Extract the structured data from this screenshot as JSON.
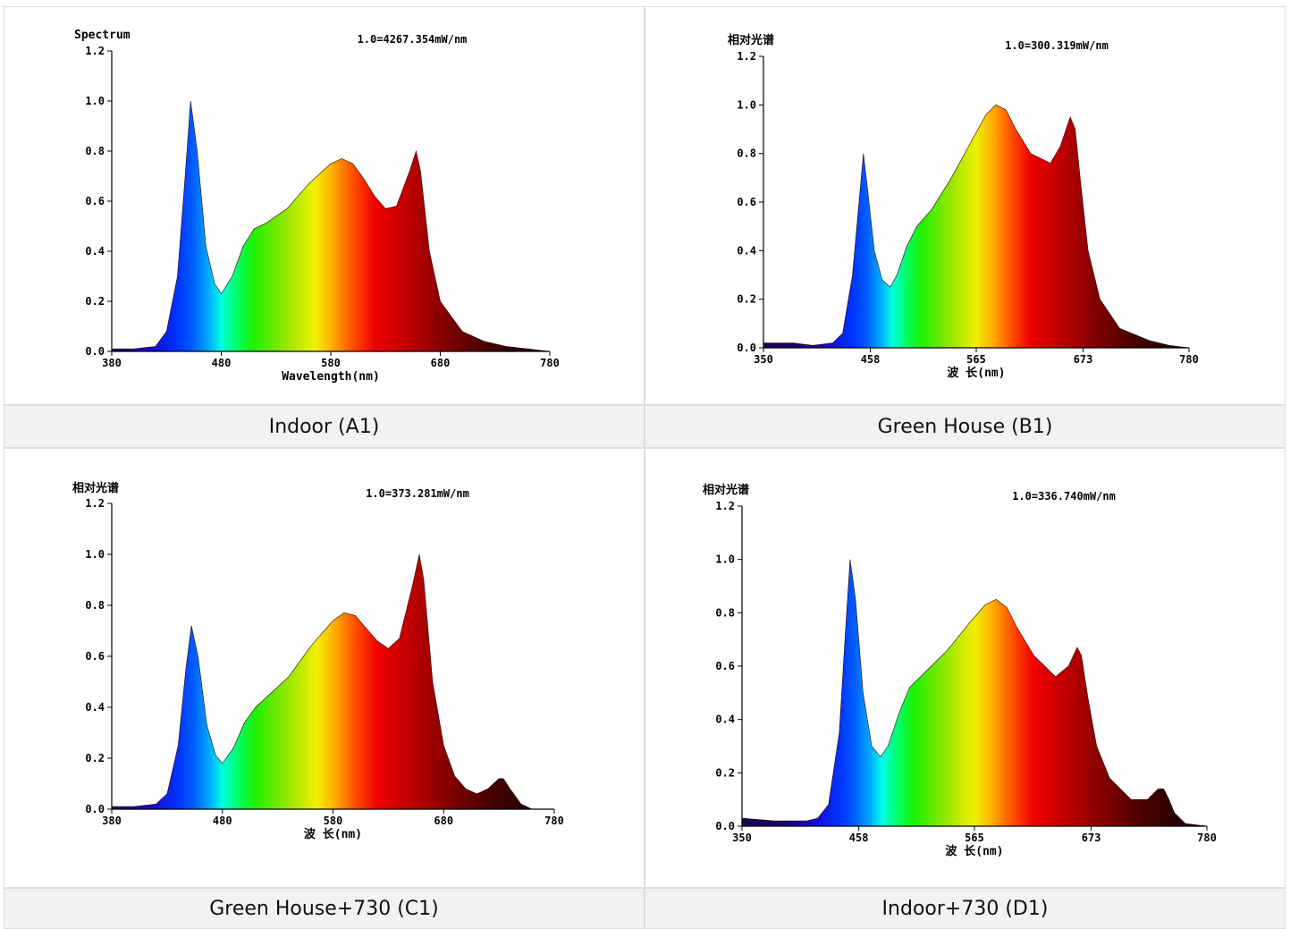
{
  "chart_data": [
    {
      "type": "area",
      "caption": "Indoor (A1)",
      "ylabel": "Spectrum",
      "xlabel": "Wavelength(nm)",
      "annotation": "1.0=4267.354mW/nm",
      "xlim": [
        380,
        780
      ],
      "ylim": [
        0,
        1.2
      ],
      "xticks": [
        380,
        480,
        580,
        680,
        780
      ],
      "yticks": [
        "0.0",
        "0.2",
        "0.4",
        "0.6",
        "0.8",
        "1.0",
        "1.2"
      ],
      "x": [
        380,
        400,
        420,
        430,
        440,
        447,
        452,
        458,
        466,
        474,
        480,
        490,
        500,
        510,
        520,
        540,
        560,
        580,
        590,
        600,
        610,
        620,
        630,
        640,
        652,
        658,
        662,
        670,
        680,
        700,
        720,
        740,
        760,
        780
      ],
      "y": [
        0.01,
        0.01,
        0.02,
        0.08,
        0.3,
        0.7,
        1.0,
        0.8,
        0.42,
        0.27,
        0.23,
        0.3,
        0.42,
        0.49,
        0.51,
        0.57,
        0.67,
        0.75,
        0.77,
        0.75,
        0.69,
        0.62,
        0.57,
        0.58,
        0.72,
        0.8,
        0.72,
        0.4,
        0.2,
        0.08,
        0.04,
        0.02,
        0.01,
        0.0
      ]
    },
    {
      "type": "area",
      "caption": "Green House (B1)",
      "ylabel": "相对光谱",
      "xlabel": "波 长(nm)",
      "annotation": "1.0=300.319mW/nm",
      "xlim": [
        350,
        780
      ],
      "ylim": [
        0,
        1.2
      ],
      "xticks": [
        350,
        458,
        565,
        673,
        780
      ],
      "yticks": [
        "0.0",
        "0.2",
        "0.4",
        "0.6",
        "0.8",
        "1.0",
        "1.2"
      ],
      "x": [
        350,
        380,
        400,
        420,
        430,
        440,
        447,
        451,
        455,
        462,
        470,
        478,
        485,
        495,
        505,
        520,
        540,
        560,
        575,
        585,
        595,
        605,
        620,
        640,
        650,
        660,
        665,
        670,
        678,
        690,
        710,
        740,
        760,
        780
      ],
      "y": [
        0.02,
        0.02,
        0.01,
        0.02,
        0.06,
        0.3,
        0.62,
        0.8,
        0.66,
        0.4,
        0.28,
        0.25,
        0.3,
        0.42,
        0.5,
        0.57,
        0.7,
        0.85,
        0.96,
        1.0,
        0.98,
        0.9,
        0.8,
        0.76,
        0.83,
        0.95,
        0.9,
        0.7,
        0.4,
        0.2,
        0.08,
        0.03,
        0.01,
        0.0
      ]
    },
    {
      "type": "area",
      "caption": "Green House+730 (C1)",
      "ylabel": "相对光谱",
      "xlabel": "波 长(nm)",
      "annotation": "1.0=373.281mW/nm",
      "xlim": [
        380,
        780
      ],
      "ylim": [
        0,
        1.2
      ],
      "xticks": [
        380,
        480,
        580,
        680,
        780
      ],
      "yticks": [
        "0.0",
        "0.2",
        "0.4",
        "0.6",
        "0.8",
        "1.0",
        "1.2"
      ],
      "x": [
        380,
        400,
        420,
        430,
        440,
        447,
        452,
        458,
        466,
        474,
        480,
        490,
        500,
        510,
        520,
        540,
        560,
        580,
        590,
        600,
        610,
        620,
        630,
        640,
        652,
        658,
        662,
        670,
        680,
        690,
        700,
        710,
        720,
        730,
        734,
        740,
        750,
        760
      ],
      "y": [
        0.01,
        0.01,
        0.02,
        0.06,
        0.25,
        0.55,
        0.72,
        0.6,
        0.33,
        0.21,
        0.18,
        0.24,
        0.34,
        0.4,
        0.44,
        0.52,
        0.64,
        0.74,
        0.77,
        0.76,
        0.71,
        0.66,
        0.63,
        0.67,
        0.88,
        1.0,
        0.9,
        0.5,
        0.25,
        0.13,
        0.08,
        0.06,
        0.08,
        0.12,
        0.12,
        0.08,
        0.02,
        0.0
      ]
    },
    {
      "type": "area",
      "caption": "Indoor+730 (D1)",
      "ylabel": "相对光谱",
      "xlabel": "波 长(nm)",
      "annotation": "1.0=336.740mW/nm",
      "xlim": [
        350,
        780
      ],
      "ylim": [
        0,
        1.2
      ],
      "xticks": [
        350,
        458,
        565,
        673,
        780
      ],
      "yticks": [
        "0.0",
        "0.2",
        "0.4",
        "0.6",
        "0.8",
        "1.0",
        "1.2"
      ],
      "x": [
        350,
        380,
        410,
        420,
        430,
        440,
        446,
        450,
        455,
        462,
        470,
        478,
        485,
        495,
        505,
        520,
        540,
        560,
        575,
        585,
        595,
        605,
        620,
        640,
        652,
        660,
        664,
        670,
        678,
        690,
        710,
        725,
        735,
        740,
        745,
        750,
        760,
        780
      ],
      "y": [
        0.03,
        0.02,
        0.02,
        0.03,
        0.08,
        0.35,
        0.75,
        1.0,
        0.85,
        0.5,
        0.3,
        0.26,
        0.3,
        0.42,
        0.52,
        0.58,
        0.66,
        0.76,
        0.83,
        0.85,
        0.82,
        0.74,
        0.64,
        0.56,
        0.6,
        0.67,
        0.64,
        0.48,
        0.3,
        0.18,
        0.1,
        0.1,
        0.14,
        0.14,
        0.1,
        0.05,
        0.01,
        0.0
      ]
    }
  ]
}
